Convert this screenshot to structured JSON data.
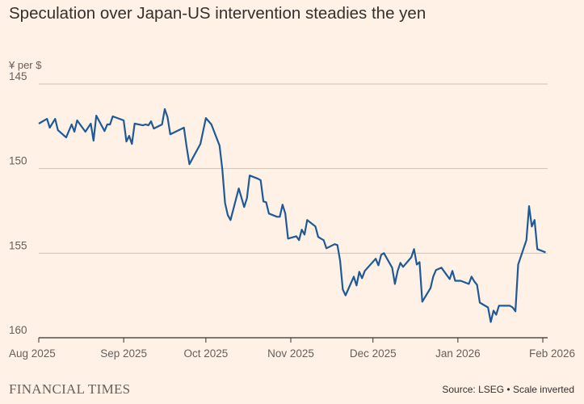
{
  "chart_data": {
    "type": "line",
    "title": "Speculation over Japan-US intervention steadies the yen",
    "ylabel": "¥ per $",
    "y_inverted": true,
    "ylim": [
      145,
      160
    ],
    "y_ticks": [
      "145",
      "150",
      "155",
      "160"
    ],
    "x_ticks": [
      {
        "label": "Aug 2025",
        "date": "2025-08-01"
      },
      {
        "label": "Sep 2025",
        "date": "2025-09-01"
      },
      {
        "label": "Oct 2025",
        "date": "2025-10-01"
      },
      {
        "label": "Nov 2025",
        "date": "2025-11-01"
      },
      {
        "label": "Dec 2025",
        "date": "2025-12-01"
      },
      {
        "label": "Jan 2026",
        "date": "2026-01-01"
      },
      {
        "label": "Feb 2026",
        "date": "2026-02-01"
      }
    ],
    "xlim": [
      "2025-08-01",
      "2026-02-03"
    ],
    "grid": "horizontal",
    "series": [
      {
        "color": "#1f5a96",
        "points": [
          [
            "2025-08-01",
            147.34
          ],
          [
            "2025-08-04",
            147.06
          ],
          [
            "2025-08-05",
            147.58
          ],
          [
            "2025-08-07",
            147.06
          ],
          [
            "2025-08-08",
            147.73
          ],
          [
            "2025-08-11",
            148.16
          ],
          [
            "2025-08-13",
            147.39
          ],
          [
            "2025-08-14",
            147.82
          ],
          [
            "2025-08-15",
            147.15
          ],
          [
            "2025-08-18",
            147.82
          ],
          [
            "2025-08-20",
            147.34
          ],
          [
            "2025-08-21",
            148.35
          ],
          [
            "2025-08-22",
            146.87
          ],
          [
            "2025-08-25",
            147.78
          ],
          [
            "2025-08-26",
            147.39
          ],
          [
            "2025-08-27",
            147.39
          ],
          [
            "2025-08-28",
            146.91
          ],
          [
            "2025-09-01",
            147.15
          ],
          [
            "2025-09-02",
            148.4
          ],
          [
            "2025-09-03",
            148.06
          ],
          [
            "2025-09-04",
            148.54
          ],
          [
            "2025-09-05",
            147.34
          ],
          [
            "2025-09-08",
            147.44
          ],
          [
            "2025-09-09",
            147.39
          ],
          [
            "2025-09-10",
            147.44
          ],
          [
            "2025-09-11",
            147.2
          ],
          [
            "2025-09-12",
            147.63
          ],
          [
            "2025-09-15",
            147.39
          ],
          [
            "2025-09-16",
            146.48
          ],
          [
            "2025-09-17",
            146.96
          ],
          [
            "2025-09-18",
            147.97
          ],
          [
            "2025-09-23",
            147.58
          ],
          [
            "2025-09-24",
            148.73
          ],
          [
            "2025-09-25",
            149.74
          ],
          [
            "2025-09-29",
            148.54
          ],
          [
            "2025-10-01",
            147.01
          ],
          [
            "2025-10-03",
            147.39
          ],
          [
            "2025-10-06",
            148.64
          ],
          [
            "2025-10-07",
            150.02
          ],
          [
            "2025-10-08",
            152.03
          ],
          [
            "2025-10-09",
            152.75
          ],
          [
            "2025-10-10",
            153.04
          ],
          [
            "2025-10-13",
            151.17
          ],
          [
            "2025-10-15",
            152.27
          ],
          [
            "2025-10-16",
            151.75
          ],
          [
            "2025-10-17",
            150.41
          ],
          [
            "2025-10-20",
            150.6
          ],
          [
            "2025-10-21",
            150.69
          ],
          [
            "2025-10-22",
            151.94
          ],
          [
            "2025-10-23",
            151.99
          ],
          [
            "2025-10-24",
            152.66
          ],
          [
            "2025-10-27",
            152.85
          ],
          [
            "2025-10-28",
            152.85
          ],
          [
            "2025-10-29",
            152.13
          ],
          [
            "2025-10-30",
            152.66
          ],
          [
            "2025-10-31",
            154.14
          ],
          [
            "2025-11-03",
            154.0
          ],
          [
            "2025-11-04",
            154.23
          ],
          [
            "2025-11-05",
            153.61
          ],
          [
            "2025-11-06",
            153.9
          ],
          [
            "2025-11-07",
            153.04
          ],
          [
            "2025-11-10",
            153.42
          ],
          [
            "2025-11-11",
            154.04
          ],
          [
            "2025-11-12",
            154.14
          ],
          [
            "2025-11-13",
            154.23
          ],
          [
            "2025-11-14",
            154.71
          ],
          [
            "2025-11-17",
            154.47
          ],
          [
            "2025-11-18",
            154.52
          ],
          [
            "2025-11-19",
            155.43
          ],
          [
            "2025-11-20",
            157.15
          ],
          [
            "2025-11-21",
            157.49
          ],
          [
            "2025-11-24",
            156.39
          ],
          [
            "2025-11-25",
            156.91
          ],
          [
            "2025-11-26",
            156.1
          ],
          [
            "2025-11-27",
            156.48
          ],
          [
            "2025-11-28",
            156.05
          ],
          [
            "2025-12-02",
            155.33
          ],
          [
            "2025-12-03",
            155.72
          ],
          [
            "2025-12-04",
            155.1
          ],
          [
            "2025-12-05",
            155.0
          ],
          [
            "2025-12-08",
            155.86
          ],
          [
            "2025-12-09",
            156.82
          ],
          [
            "2025-12-10",
            156.05
          ],
          [
            "2025-12-11",
            155.57
          ],
          [
            "2025-12-12",
            155.81
          ],
          [
            "2025-12-15",
            155.24
          ],
          [
            "2025-12-16",
            154.76
          ],
          [
            "2025-12-17",
            155.67
          ],
          [
            "2025-12-18",
            155.53
          ],
          [
            "2025-12-19",
            157.87
          ],
          [
            "2025-12-22",
            157.06
          ],
          [
            "2025-12-23",
            156.39
          ],
          [
            "2025-12-24",
            156.0
          ],
          [
            "2025-12-26",
            155.86
          ],
          [
            "2025-12-29",
            156.53
          ],
          [
            "2025-12-30",
            156.05
          ],
          [
            "2025-12-31",
            156.63
          ],
          [
            "2026-01-02",
            156.63
          ],
          [
            "2026-01-05",
            156.82
          ],
          [
            "2026-01-06",
            156.39
          ],
          [
            "2026-01-07",
            156.67
          ],
          [
            "2026-01-08",
            156.87
          ],
          [
            "2026-01-09",
            157.92
          ],
          [
            "2026-01-12",
            158.21
          ],
          [
            "2026-01-13",
            159.07
          ],
          [
            "2026-01-14",
            158.4
          ],
          [
            "2026-01-15",
            158.64
          ],
          [
            "2026-01-16",
            158.11
          ],
          [
            "2026-01-20",
            158.11
          ],
          [
            "2026-01-21",
            158.21
          ],
          [
            "2026-01-22",
            158.44
          ],
          [
            "2026-01-23",
            155.67
          ],
          [
            "2026-01-26",
            154.23
          ],
          [
            "2026-01-27",
            152.22
          ],
          [
            "2026-01-28",
            153.42
          ],
          [
            "2026-01-29",
            153.04
          ],
          [
            "2026-01-30",
            154.76
          ],
          [
            "2026-02-02",
            154.95
          ]
        ]
      }
    ],
    "source": "Source: LSEG • Scale inverted"
  },
  "footer": {
    "logo": "FINANCIAL TIMES"
  },
  "colors": {
    "background": "#fff1e5",
    "line": "#1f5a96",
    "grid": "#cec2b8",
    "axis": "#33302e"
  }
}
